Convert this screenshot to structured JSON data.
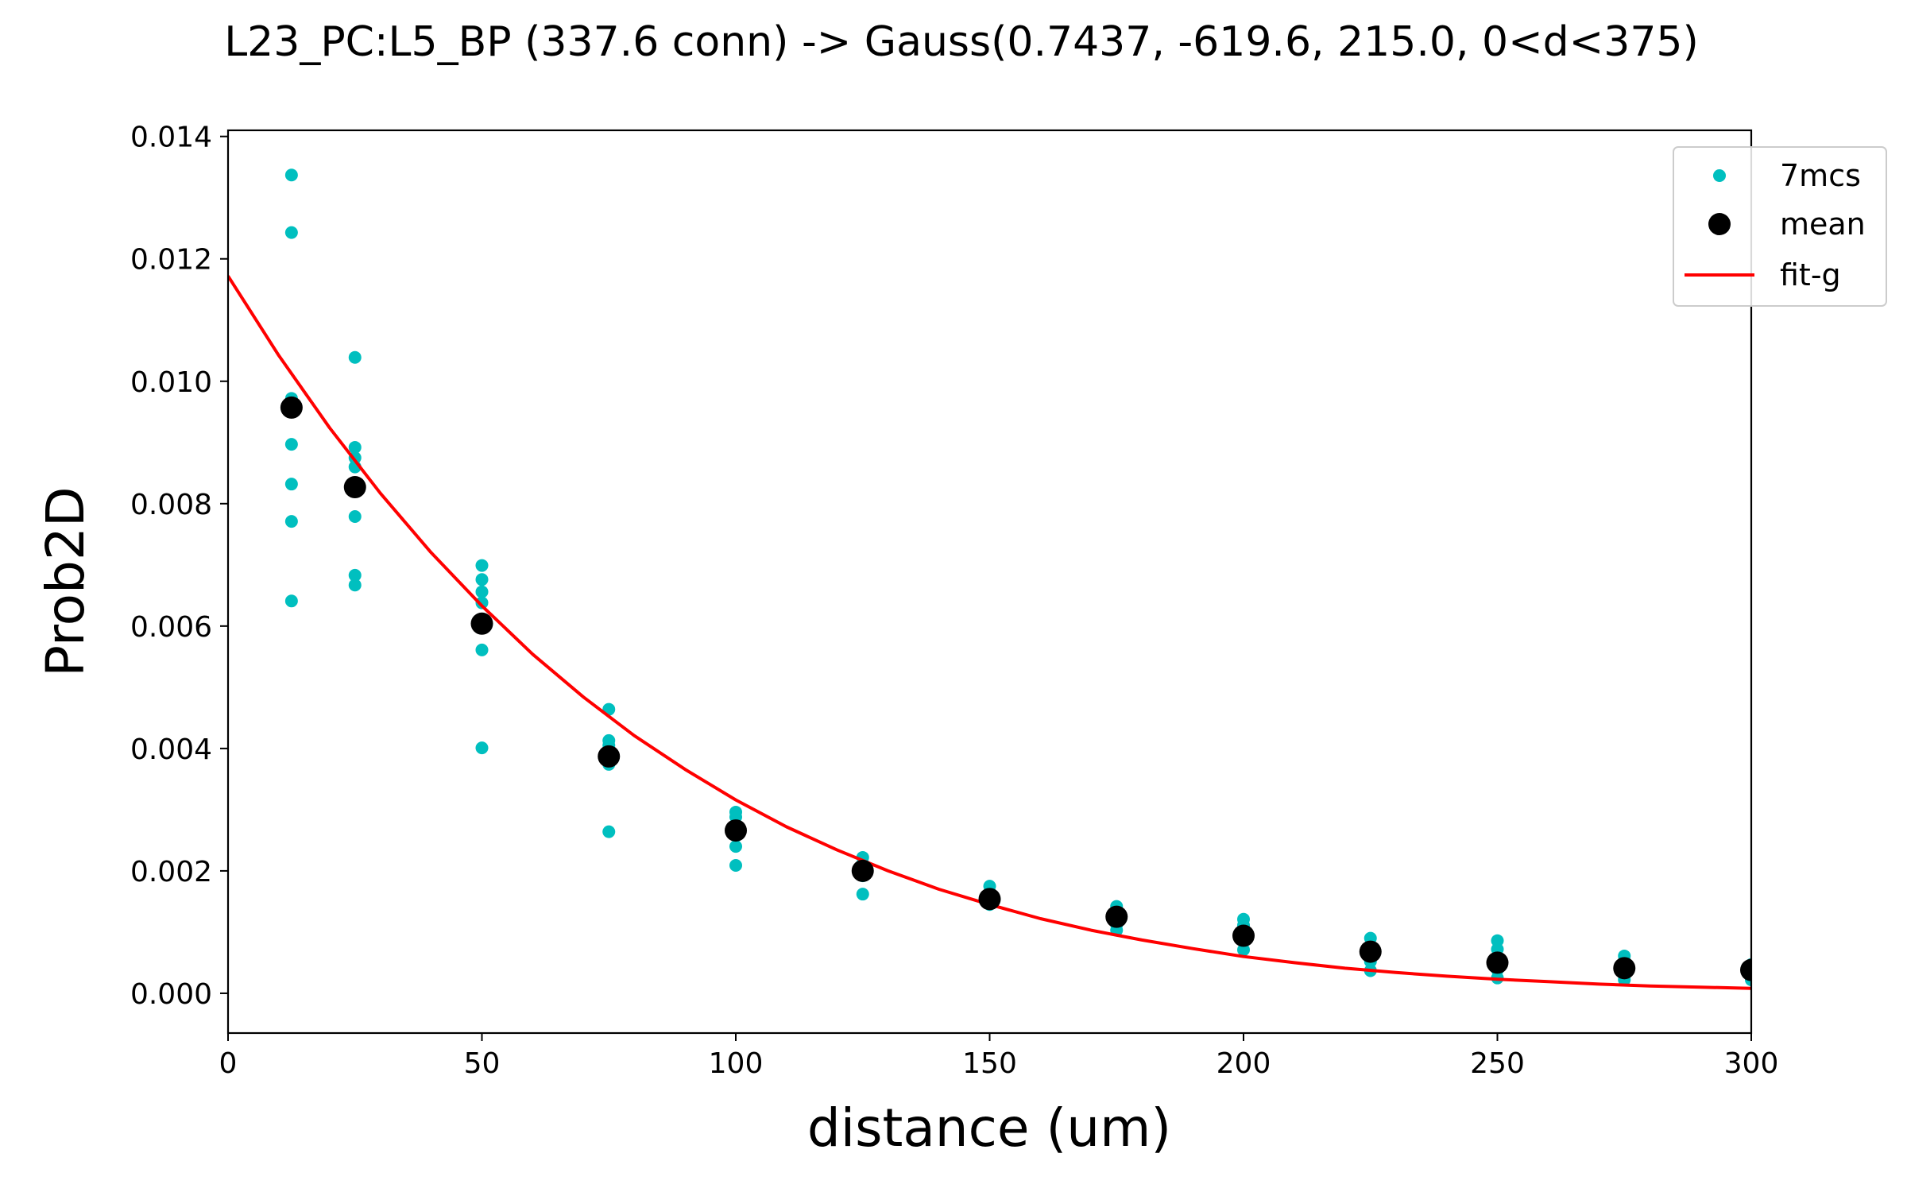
{
  "chart_data": {
    "type": "scatter",
    "title": "L23_PC:L5_BP (337.6 conn) -> Gauss(0.7437, -619.6, 215.0, 0<d<375)",
    "xlabel": "distance (um)",
    "ylabel": "Prob2D",
    "xlim": [
      0,
      300
    ],
    "ylim": [
      -0.00065,
      0.0141
    ],
    "x_ticks": [
      0,
      50,
      100,
      150,
      200,
      250,
      300
    ],
    "x_tick_labels": [
      "0",
      "50",
      "100",
      "150",
      "200",
      "250",
      "300"
    ],
    "y_ticks": [
      0.0,
      0.002,
      0.004,
      0.006,
      0.008,
      0.01,
      0.012,
      0.014
    ],
    "y_tick_labels": [
      "0.000",
      "0.002",
      "0.004",
      "0.006",
      "0.008",
      "0.010",
      "0.012",
      "0.014"
    ],
    "grid": false,
    "legend_position": "top-right",
    "series": [
      {
        "name": "7mcs",
        "kind": "points",
        "color": "#00bfbf",
        "points": [
          [
            12.5,
            0.01337
          ],
          [
            12.5,
            0.01243
          ],
          [
            12.5,
            0.00972
          ],
          [
            12.5,
            0.00897
          ],
          [
            12.5,
            0.00832
          ],
          [
            12.5,
            0.00771
          ],
          [
            12.5,
            0.00641
          ],
          [
            25,
            0.01039
          ],
          [
            25,
            0.00892
          ],
          [
            25,
            0.00875
          ],
          [
            25,
            0.0086
          ],
          [
            25,
            0.00779
          ],
          [
            25,
            0.00683
          ],
          [
            25,
            0.00667
          ],
          [
            50,
            0.00699
          ],
          [
            50,
            0.00676
          ],
          [
            50,
            0.00656
          ],
          [
            50,
            0.00638
          ],
          [
            50,
            0.00561
          ],
          [
            50,
            0.00401
          ],
          [
            75,
            0.00464
          ],
          [
            75,
            0.00413
          ],
          [
            75,
            0.00405
          ],
          [
            75,
            0.00392
          ],
          [
            75,
            0.00374
          ],
          [
            75,
            0.00264
          ],
          [
            100,
            0.00296
          ],
          [
            100,
            0.00288
          ],
          [
            100,
            0.00275
          ],
          [
            100,
            0.00259
          ],
          [
            100,
            0.0024
          ],
          [
            100,
            0.00209
          ],
          [
            125,
            0.00222
          ],
          [
            125,
            0.00212
          ],
          [
            125,
            0.002
          ],
          [
            125,
            0.00192
          ],
          [
            125,
            0.00162
          ],
          [
            150,
            0.00175
          ],
          [
            150,
            0.00165
          ],
          [
            150,
            0.00155
          ],
          [
            150,
            0.00145
          ],
          [
            175,
            0.00142
          ],
          [
            175,
            0.00132
          ],
          [
            175,
            0.00122
          ],
          [
            175,
            0.00112
          ],
          [
            175,
            0.00103
          ],
          [
            200,
            0.00121
          ],
          [
            200,
            0.00111
          ],
          [
            200,
            0.00097
          ],
          [
            200,
            0.00085
          ],
          [
            200,
            0.00071
          ],
          [
            225,
            0.0009
          ],
          [
            225,
            0.00078
          ],
          [
            225,
            0.00064
          ],
          [
            225,
            0.00052
          ],
          [
            225,
            0.00037
          ],
          [
            250,
            0.00086
          ],
          [
            250,
            0.00072
          ],
          [
            250,
            0.00052
          ],
          [
            250,
            0.00038
          ],
          [
            250,
            0.00025
          ],
          [
            275,
            0.00061
          ],
          [
            275,
            0.00046
          ],
          [
            275,
            0.00035
          ],
          [
            275,
            0.00022
          ],
          [
            300,
            0.00047
          ],
          [
            300,
            0.00035
          ],
          [
            300,
            0.00022
          ]
        ]
      },
      {
        "name": "mean",
        "kind": "points",
        "color": "#000000",
        "x": [
          12.5,
          25,
          50,
          75,
          100,
          125,
          150,
          175,
          200,
          225,
          250,
          275,
          300
        ],
        "y": [
          0.00957,
          0.00827,
          0.00604,
          0.00387,
          0.00266,
          0.002,
          0.00154,
          0.00125,
          0.00094,
          0.00068,
          0.0005,
          0.00041,
          0.00038
        ]
      },
      {
        "name": "fit-g",
        "kind": "line",
        "color": "#ff0000",
        "x": [
          0,
          10,
          20,
          30,
          40,
          50,
          60,
          70,
          80,
          90,
          100,
          110,
          120,
          130,
          140,
          150,
          160,
          170,
          180,
          190,
          200,
          210,
          220,
          230,
          240,
          250,
          260,
          270,
          280,
          290,
          300
        ],
        "y": [
          0.01172,
          0.01042,
          0.00924,
          0.00817,
          0.0072,
          0.00633,
          0.00554,
          0.00484,
          0.00421,
          0.00366,
          0.00316,
          0.00272,
          0.00234,
          0.002,
          0.0017,
          0.00145,
          0.00122,
          0.00103,
          0.00087,
          0.00073,
          0.0006,
          0.0005,
          0.00041,
          0.00034,
          0.00028,
          0.00023,
          0.00019,
          0.00015,
          0.00012,
          0.0001,
          8e-05
        ]
      }
    ]
  }
}
